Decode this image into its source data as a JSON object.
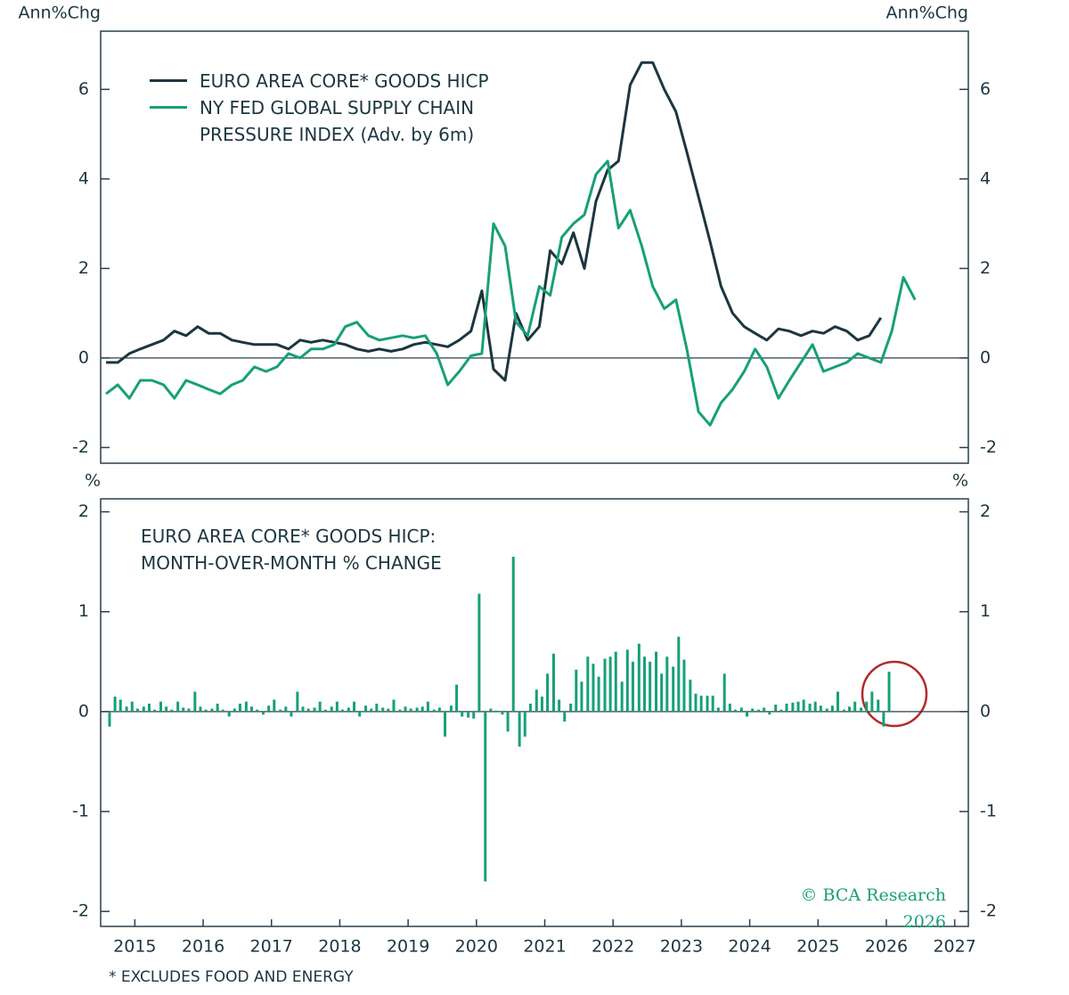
{
  "chart_data": [
    {
      "type": "line",
      "y_label": "Ann%Chg",
      "xlim": [
        2014.5,
        2027.2
      ],
      "ylim": [
        -2.35,
        7.3
      ],
      "yticks": [
        -2,
        0,
        2,
        4,
        6
      ],
      "x": [
        2014.58,
        2014.75,
        2014.92,
        2015.08,
        2015.25,
        2015.42,
        2015.58,
        2015.75,
        2015.92,
        2016.08,
        2016.25,
        2016.42,
        2016.58,
        2016.75,
        2016.92,
        2017.08,
        2017.25,
        2017.42,
        2017.58,
        2017.75,
        2017.92,
        2018.08,
        2018.25,
        2018.42,
        2018.58,
        2018.75,
        2018.92,
        2019.08,
        2019.25,
        2019.42,
        2019.58,
        2019.75,
        2019.92,
        2020.08,
        2020.25,
        2020.42,
        2020.58,
        2020.75,
        2020.92,
        2021.08,
        2021.25,
        2021.42,
        2021.58,
        2021.75,
        2021.92,
        2022.08,
        2022.25,
        2022.42,
        2022.58,
        2022.75,
        2022.92,
        2023.08,
        2023.25,
        2023.42,
        2023.58,
        2023.75,
        2023.92,
        2024.08,
        2024.25,
        2024.42,
        2024.58,
        2024.75,
        2024.92,
        2025.08,
        2025.25,
        2025.42,
        2025.58,
        2025.75,
        2025.92,
        2026.08,
        2026.25,
        2026.42
      ],
      "series": [
        {
          "name": "EURO AREA CORE* GOODS HICP",
          "color": "#1c3640",
          "values": [
            -0.1,
            -0.1,
            0.1,
            0.2,
            0.3,
            0.4,
            0.6,
            0.5,
            0.7,
            0.55,
            0.55,
            0.4,
            0.35,
            0.3,
            0.3,
            0.3,
            0.2,
            0.4,
            0.35,
            0.4,
            0.35,
            0.3,
            0.2,
            0.15,
            0.2,
            0.15,
            0.2,
            0.3,
            0.35,
            0.3,
            0.25,
            0.4,
            0.6,
            1.5,
            -0.25,
            -0.5,
            1.0,
            0.4,
            0.7,
            2.4,
            2.1,
            2.8,
            2.0,
            3.5,
            4.2,
            4.4,
            6.1,
            6.6,
            6.6,
            6.0,
            5.5,
            4.6,
            3.6,
            2.6,
            1.6,
            1.0,
            0.7,
            0.55,
            0.4,
            0.65,
            0.6,
            0.5,
            0.6,
            0.55,
            0.7,
            0.6,
            0.4,
            0.5,
            0.9,
            null,
            null,
            null
          ]
        },
        {
          "name": "NY FED GLOBAL SUPPLY CHAIN PRESSURE INDEX (Adv. by 6m)",
          "color": "#17a077",
          "values": [
            -0.8,
            -0.6,
            -0.9,
            -0.5,
            -0.5,
            -0.6,
            -0.9,
            -0.5,
            -0.6,
            -0.7,
            -0.8,
            -0.6,
            -0.5,
            -0.2,
            -0.3,
            -0.2,
            0.1,
            0.0,
            0.2,
            0.2,
            0.3,
            0.7,
            0.8,
            0.5,
            0.4,
            0.45,
            0.5,
            0.45,
            0.5,
            0.1,
            -0.6,
            -0.3,
            0.05,
            0.1,
            3.0,
            2.5,
            0.8,
            0.5,
            1.6,
            1.4,
            2.7,
            3.0,
            3.2,
            4.1,
            4.4,
            2.9,
            3.3,
            2.5,
            1.6,
            1.1,
            1.3,
            0.2,
            -1.2,
            -1.5,
            -1.0,
            -0.7,
            -0.3,
            0.2,
            -0.2,
            -0.9,
            -0.5,
            -0.1,
            0.3,
            -0.3,
            -0.2,
            -0.1,
            0.1,
            0.0,
            -0.1,
            0.6,
            1.8,
            1.3
          ]
        }
      ]
    },
    {
      "type": "bar",
      "title": "EURO AREA CORE* GOODS HICP: MONTH-OVER-MONTH % CHANGE",
      "y_label": "%",
      "color": "#17a077",
      "xlim": [
        2014.5,
        2027.2
      ],
      "xticks": [
        2015,
        2016,
        2017,
        2018,
        2019,
        2020,
        2021,
        2022,
        2023,
        2024,
        2025,
        2026,
        2027
      ],
      "ylim": [
        -2.15,
        2.13
      ],
      "yticks": [
        -2,
        -1,
        0,
        1,
        2
      ],
      "x": [
        2014.63,
        2014.71,
        2014.79,
        2014.88,
        2014.96,
        2015.04,
        2015.13,
        2015.21,
        2015.29,
        2015.38,
        2015.46,
        2015.54,
        2015.63,
        2015.71,
        2015.79,
        2015.88,
        2015.96,
        2016.04,
        2016.13,
        2016.21,
        2016.29,
        2016.38,
        2016.46,
        2016.54,
        2016.63,
        2016.71,
        2016.79,
        2016.88,
        2016.96,
        2017.04,
        2017.13,
        2017.21,
        2017.29,
        2017.38,
        2017.46,
        2017.54,
        2017.63,
        2017.71,
        2017.79,
        2017.88,
        2017.96,
        2018.04,
        2018.13,
        2018.21,
        2018.29,
        2018.38,
        2018.46,
        2018.54,
        2018.63,
        2018.71,
        2018.79,
        2018.88,
        2018.96,
        2019.04,
        2019.13,
        2019.21,
        2019.29,
        2019.38,
        2019.46,
        2019.54,
        2019.63,
        2019.71,
        2019.79,
        2019.88,
        2019.96,
        2020.04,
        2020.13,
        2020.21,
        2020.29,
        2020.38,
        2020.46,
        2020.54,
        2020.63,
        2020.71,
        2020.79,
        2020.88,
        2020.96,
        2021.04,
        2021.13,
        2021.21,
        2021.29,
        2021.38,
        2021.46,
        2021.54,
        2021.63,
        2021.71,
        2021.79,
        2021.88,
        2021.96,
        2022.04,
        2022.13,
        2022.21,
        2022.29,
        2022.38,
        2022.46,
        2022.54,
        2022.63,
        2022.71,
        2022.79,
        2022.88,
        2022.96,
        2023.04,
        2023.13,
        2023.21,
        2023.29,
        2023.38,
        2023.46,
        2023.54,
        2023.63,
        2023.71,
        2023.79,
        2023.88,
        2023.96,
        2024.04,
        2024.13,
        2024.21,
        2024.29,
        2024.38,
        2024.46,
        2024.54,
        2024.63,
        2024.71,
        2024.79,
        2024.88,
        2024.96,
        2025.04,
        2025.13,
        2025.21,
        2025.29,
        2025.38,
        2025.46,
        2025.54,
        2025.63,
        2025.71,
        2025.79,
        2025.88,
        2025.96,
        2026.04
      ],
      "values": [
        -0.15,
        0.15,
        0.12,
        0.05,
        0.1,
        0.03,
        0.05,
        0.08,
        0.02,
        0.1,
        0.05,
        0.02,
        0.1,
        0.04,
        0.03,
        0.2,
        0.05,
        0.02,
        0.03,
        0.08,
        0.02,
        -0.05,
        0.03,
        0.08,
        0.1,
        0.05,
        0.02,
        -0.03,
        0.06,
        0.12,
        0.02,
        0.05,
        -0.05,
        0.2,
        0.05,
        0.03,
        0.04,
        0.1,
        0.02,
        0.05,
        0.1,
        0.02,
        0.04,
        0.1,
        -0.05,
        0.06,
        0.03,
        0.08,
        0.04,
        0.03,
        0.12,
        0.02,
        0.05,
        0.03,
        0.04,
        0.05,
        0.1,
        0.02,
        0.04,
        -0.25,
        0.06,
        0.27,
        -0.05,
        -0.06,
        -0.07,
        1.18,
        -1.7,
        0.03,
        0.01,
        -0.03,
        -0.2,
        1.55,
        -0.35,
        -0.25,
        0.08,
        0.22,
        0.15,
        0.38,
        0.58,
        0.12,
        -0.1,
        0.08,
        0.42,
        0.3,
        0.55,
        0.48,
        0.35,
        0.53,
        0.55,
        0.6,
        0.3,
        0.62,
        0.5,
        0.68,
        0.55,
        0.5,
        0.6,
        0.38,
        0.55,
        0.45,
        0.75,
        0.52,
        0.32,
        0.18,
        0.16,
        0.16,
        0.16,
        0.04,
        0.38,
        0.08,
        0.02,
        0.04,
        -0.05,
        0.03,
        0.02,
        0.04,
        -0.03,
        0.07,
        0.02,
        0.08,
        0.09,
        0.1,
        0.12,
        0.08,
        0.1,
        0.06,
        0.03,
        0.06,
        0.2,
        0.02,
        0.05,
        0.1,
        0.04,
        0.1,
        0.2,
        0.12,
        -0.15,
        0.4
      ]
    }
  ],
  "footnote": "* EXCLUDES FOOD AND ENERGY",
  "source": "© BCA Research 2026"
}
